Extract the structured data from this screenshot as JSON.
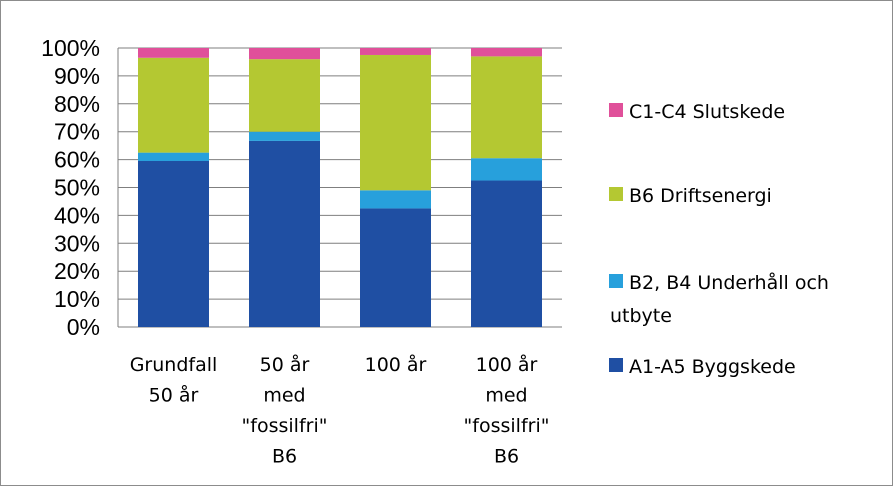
{
  "chart_data": {
    "type": "bar",
    "stacked": true,
    "normalized_percent": true,
    "categories": [
      [
        "Grundfall",
        "50 år"
      ],
      [
        "50 år",
        "med",
        "\"fossilfri\"",
        "B6"
      ],
      [
        "100 år"
      ],
      [
        "100 år",
        "med",
        "\"fossilfri\"",
        "B6"
      ]
    ],
    "series": [
      {
        "name": "A1-A5 Byggskede",
        "color": "#1f4fa3",
        "values": [
          59.5,
          66.7,
          42.5,
          52.5
        ]
      },
      {
        "name": "B2, B4 Underhåll och utbyte",
        "color": "#27a0dc",
        "values": [
          3.0,
          3.3,
          6.5,
          8.0
        ]
      },
      {
        "name": "B6 Driftsenergi",
        "color": "#b4c832",
        "values": [
          34.0,
          26.0,
          48.5,
          36.5
        ]
      },
      {
        "name": "C1-C4 Slutskede",
        "color": "#e0509a",
        "values": [
          3.5,
          4.0,
          2.5,
          3.0
        ]
      }
    ],
    "legend_lines": [
      [
        "C1-C4 Slutskede"
      ],
      [
        "B6 Driftsenergi"
      ],
      [
        "B2, B4 Underhåll och",
        "utbyte"
      ],
      [
        "A1-A5 Byggskede"
      ]
    ],
    "yticks": [
      "0%",
      "10%",
      "20%",
      "30%",
      "40%",
      "50%",
      "60%",
      "70%",
      "80%",
      "90%",
      "100%"
    ],
    "ylim": [
      0,
      100
    ],
    "grid": "horizontal",
    "legend_position": "right"
  }
}
